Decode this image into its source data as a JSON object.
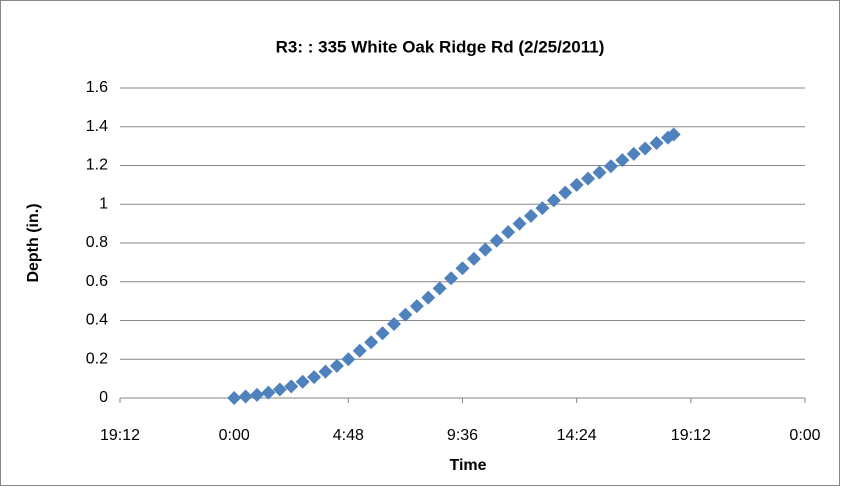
{
  "chart_data": {
    "type": "scatter",
    "title": "R3: : 335 White Oak Ridge Rd (2/25/2011)",
    "x_label": "Time",
    "y_label": "Depth (in.)",
    "color": "#4f81bd",
    "grid": true,
    "xlim": [
      -0.2,
      1.0
    ],
    "xticks": [
      {
        "value": -0.2,
        "label": "19:12"
      },
      {
        "value": 0,
        "label": "0:00"
      },
      {
        "value": 0.2,
        "label": "4:48"
      },
      {
        "value": 0.4,
        "label": "9:36"
      },
      {
        "value": 0.6,
        "label": "14:24"
      },
      {
        "value": 0.8,
        "label": "19:12"
      },
      {
        "value": 1.0,
        "label": "0:00"
      }
    ],
    "ylim": [
      0,
      1.6
    ],
    "yticks": [
      0,
      0.2,
      0.4,
      0.6,
      0.8,
      1,
      1.2,
      1.4,
      1.6
    ],
    "x": [
      0,
      0.02,
      0.04,
      0.06,
      0.08,
      0.1,
      0.12,
      0.14,
      0.16,
      0.18,
      0.2,
      0.22,
      0.24,
      0.26,
      0.28,
      0.3,
      0.32,
      0.34,
      0.36,
      0.38,
      0.4,
      0.42,
      0.44,
      0.46,
      0.48,
      0.5,
      0.52,
      0.54,
      0.56,
      0.58,
      0.6,
      0.62,
      0.64,
      0.66,
      0.68,
      0.7,
      0.72,
      0.74,
      0.76,
      0.77
    ],
    "values": [
      0,
      0.008,
      0.016,
      0.028,
      0.044,
      0.06,
      0.084,
      0.108,
      0.136,
      0.166,
      0.2,
      0.244,
      0.288,
      0.334,
      0.382,
      0.43,
      0.474,
      0.518,
      0.566,
      0.618,
      0.67,
      0.718,
      0.766,
      0.812,
      0.856,
      0.9,
      0.94,
      0.98,
      1.02,
      1.06,
      1.1,
      1.132,
      1.164,
      1.196,
      1.228,
      1.26,
      1.288,
      1.316,
      1.344,
      1.36
    ]
  }
}
